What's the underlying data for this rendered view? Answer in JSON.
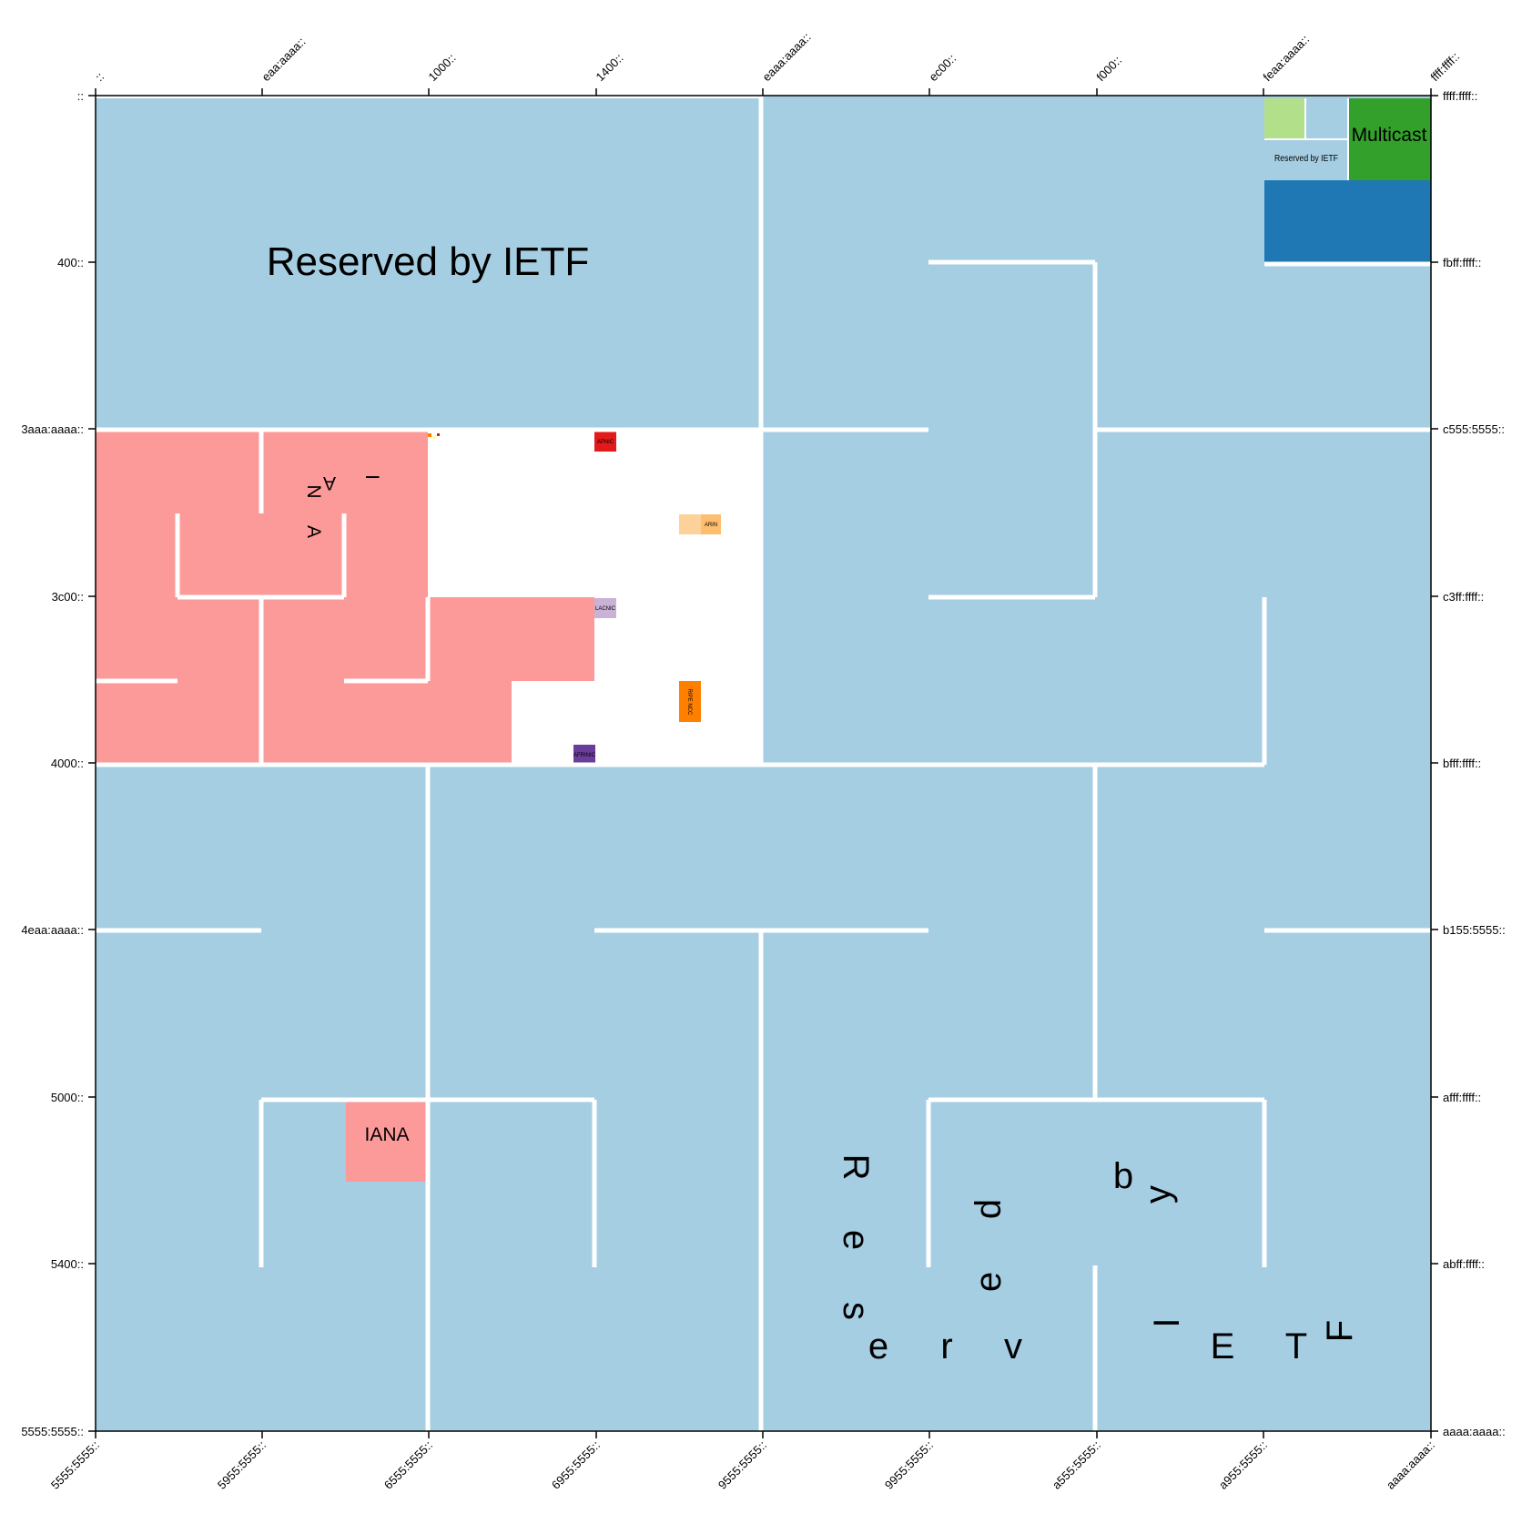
{
  "axes": {
    "top": [
      "::",
      "eaa:aaaa::",
      "1000::",
      "1400::",
      "eaaa:aaaa::",
      "ec00::",
      "f000::",
      "feaa:aaaa::",
      "ffff:ffff::"
    ],
    "left": [
      "::",
      "400::",
      "3aaa:aaaa::",
      "3c00::",
      "4000::",
      "4eaa:aaaa::",
      "5000::",
      "5400::",
      "5555:5555::"
    ],
    "right": [
      "ffff:ffff::",
      "fbff:ffff::",
      "c555:5555::",
      "c3ff:ffff::",
      "bfff:ffff::",
      "b155:5555::",
      "afff:ffff::",
      "abff:ffff::",
      "aaaa:aaaa::"
    ],
    "bottom": [
      "5555:5555::",
      "5955:5555::",
      "6555:5555::",
      "6955:5555::",
      "9555:5555::",
      "9955:5555::",
      "a555:5555::",
      "a955:5555::",
      "aaaa:aaaa::"
    ]
  },
  "labels": {
    "reserved_top": "Reserved by IETF",
    "multicast": "Multicast",
    "reserved_small": "Reserved by IETF",
    "iana_block": "IANA",
    "iana_scattered": [
      "I",
      "A",
      "N",
      "A"
    ],
    "reserved_scattered": [
      "R",
      "e",
      "s",
      "e",
      "r",
      "v",
      "e",
      "d",
      "b",
      "y",
      "I",
      "E",
      "T",
      "F"
    ],
    "registries": {
      "apnic": "APNIC",
      "arin": "ARIN",
      "lacnic": "LACNIC",
      "ripe": "RIPE NCC",
      "afrinic": "AFRINIC"
    }
  },
  "colors": {
    "reserved": "#a6cee3",
    "iana": "#fb9a99",
    "multicast": "#33a02c",
    "dark_blue": "#1f78b4",
    "light_green": "#b2df8a",
    "apnic": "#e31a1c",
    "arin": "#fdbf6f",
    "arin_light": "#fdd29a",
    "lacnic": "#cab2d6",
    "ripe": "#ff7f00",
    "afrinic": "#6a3d9a"
  }
}
